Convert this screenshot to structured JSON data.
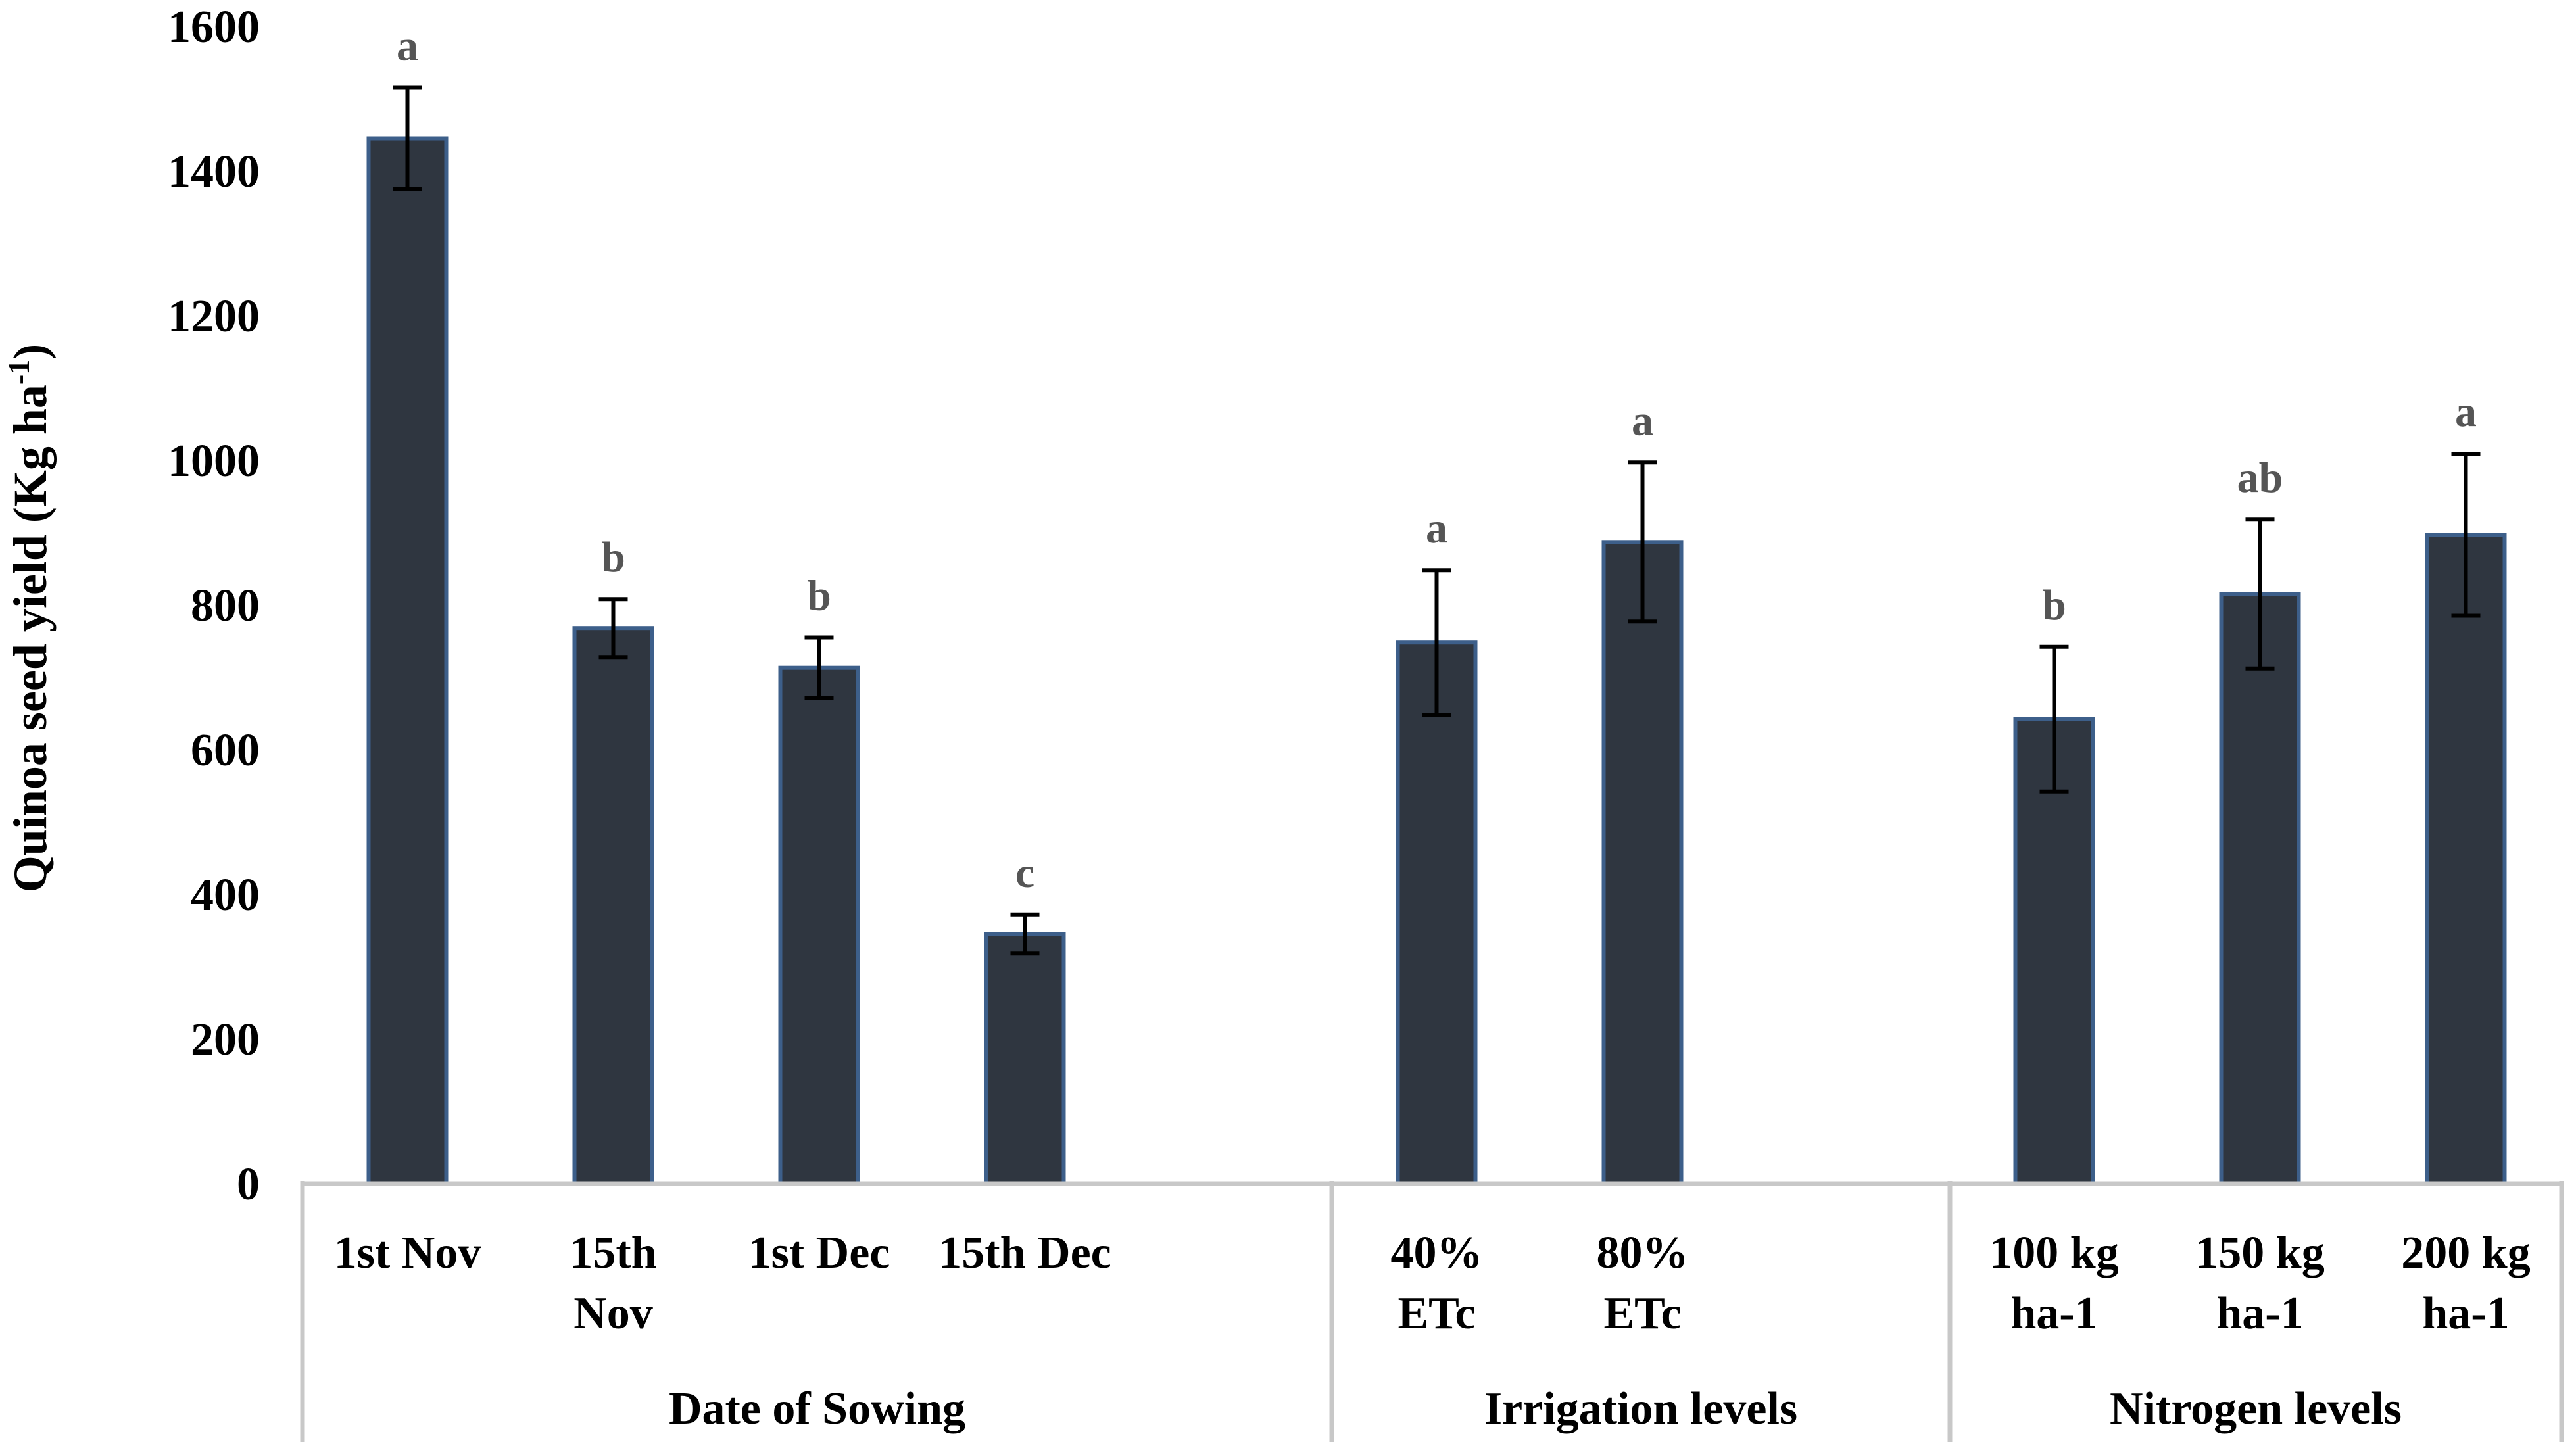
{
  "chart_data": {
    "type": "bar",
    "title": "",
    "xlabel": "",
    "ylabel": "Quinoa seed yield (Kg ha",
    "ylabel_superscript": "-1",
    "ylabel_suffix": ")",
    "ylim": [
      0,
      1600
    ],
    "yticks": [
      "0",
      "200",
      "400",
      "600",
      "800",
      "1000",
      "1200",
      "1400",
      "1600"
    ],
    "grid": false,
    "bar_color": "#2f3640",
    "bar_edge_color": "#3d5f8a",
    "groups": [
      {
        "name": "Date of Sowing",
        "categories": [
          {
            "label": [
              "1st Nov"
            ],
            "value": 1445,
            "error": 70,
            "significance": "a"
          },
          {
            "label": [
              "15th",
              "Nov"
            ],
            "value": 768,
            "error": 40,
            "significance": "b"
          },
          {
            "label": [
              "1st Dec"
            ],
            "value": 713,
            "error": 42,
            "significance": "b"
          },
          {
            "label": [
              "15th Dec"
            ],
            "value": 345,
            "error": 27,
            "significance": "c"
          }
        ]
      },
      {
        "name": "Irrigation levels",
        "categories": [
          {
            "label": [
              "40%",
              "ETc"
            ],
            "value": 748,
            "error": 100,
            "significance": "a"
          },
          {
            "label": [
              "80%",
              "ETc"
            ],
            "value": 887,
            "error": 110,
            "significance": "a"
          }
        ]
      },
      {
        "name": "Nitrogen levels",
        "categories": [
          {
            "label": [
              "100 kg",
              "ha-1"
            ],
            "value": 642,
            "error": 100,
            "significance": "b"
          },
          {
            "label": [
              "150 kg",
              "ha-1"
            ],
            "value": 815,
            "error": 103,
            "significance": "ab"
          },
          {
            "label": [
              "200 kg",
              "ha-1"
            ],
            "value": 897,
            "error": 112,
            "significance": "a"
          }
        ]
      }
    ]
  }
}
